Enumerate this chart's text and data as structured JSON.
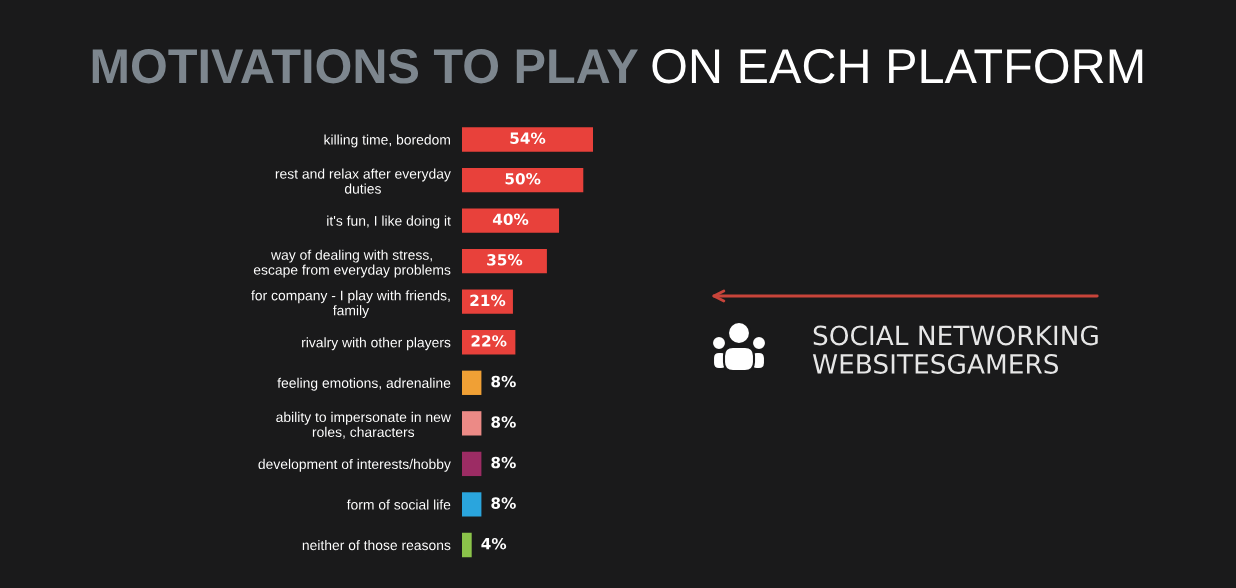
{
  "chart_data": {
    "type": "bar",
    "orientation": "horizontal",
    "title": "MOTIVATIONS TO PLAY ON EACH PLATFORM",
    "categories": [
      "killing time, boredom",
      "rest and relax after everyday\nduties",
      "it's fun, I like doing it",
      "way of dealing with stress,\nescape from everyday problems",
      "for company - I play with friends,\nfamily",
      "rivalry with other players",
      "feeling emotions, adrenaline",
      "ability to impersonate in new\nroles, characters",
      "development of interests/hobby",
      "form of social life",
      "neither of those reasons"
    ],
    "values": [
      54,
      50,
      40,
      35,
      21,
      22,
      8,
      8,
      8,
      8,
      4
    ],
    "colors": [
      "#e8413b",
      "#e8413b",
      "#e8413b",
      "#e8413b",
      "#e8413b",
      "#e8413b",
      "#f0a035",
      "#ec8a86",
      "#9c2c64",
      "#2aa5dd",
      "#8bc34a"
    ],
    "value_labels": [
      "54%",
      "50%",
      "40%",
      "35%",
      "21%",
      "22%",
      "8%",
      "8%",
      "8%",
      "8%",
      "4%"
    ],
    "annotations": [
      "SOCIAL NETWORKING\nWEBSITESGAMERS"
    ],
    "tick_labels": "y"
  }
}
